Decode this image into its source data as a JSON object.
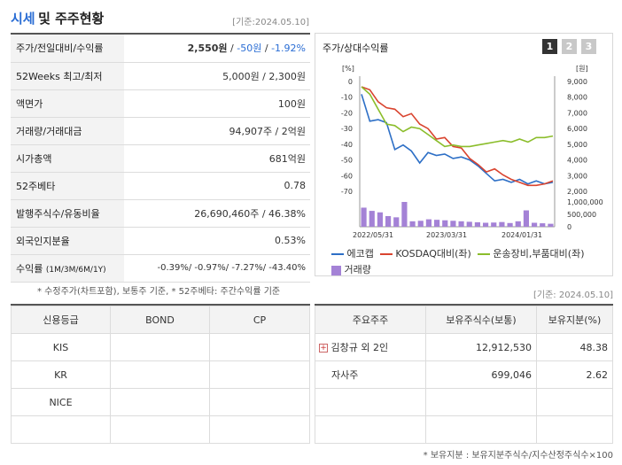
{
  "header": {
    "title_part1": "시세",
    "title_part2": "및 주주현황",
    "date": "[기준:2024.05.10]"
  },
  "market": {
    "rows": [
      {
        "label": "주가/전일대비/수익률"
      },
      {
        "label": "52Weeks 최고/최저",
        "value": "5,000원 / 2,300원"
      },
      {
        "label": "액면가",
        "value": "100원"
      },
      {
        "label": "거래량/거래대금",
        "value": "94,907주 / 2억원"
      },
      {
        "label": "시가총액",
        "value": "681억원"
      },
      {
        "label": "52주베타",
        "value": "0.78"
      },
      {
        "label": "발행주식수/유동비율",
        "value": "26,690,460주 / 46.38%"
      },
      {
        "label": "외국인지분율",
        "value": "0.53%"
      }
    ],
    "price": "2,550원",
    "change": "-50원",
    "change_pct": "-1.92%",
    "sep": "/",
    "returns_label": "수익률",
    "returns_sub": "(1M/3M/6M/1Y)",
    "returns_value": "-0.39%/ -0.97%/ -7.27%/ -43.40%",
    "note": "* 수정주가(차트포함), 보통주 기준, * 52주베타: 주간수익률 기준"
  },
  "chart_panel": {
    "title": "주가/상대수익률",
    "tabs": [
      "1",
      "2",
      "3"
    ],
    "date": "[기준: 2024.05.10]"
  },
  "chart_data": {
    "type": "line",
    "left_unit": "[%]",
    "right_unit": "[원]",
    "left_ticks": [
      "0",
      "-10",
      "-20",
      "-30",
      "-40",
      "-50",
      "-60",
      "-70"
    ],
    "right_ticks": [
      "9,000",
      "8,000",
      "7,000",
      "6,000",
      "5,000",
      "4,000",
      "3,000",
      "2,000"
    ],
    "volume_ticks": [
      "1,000,000",
      "500,000",
      "0"
    ],
    "x_labels": [
      "2022/05/31",
      "2023/03/31",
      "2024/01/31"
    ],
    "ylim_left": [
      -70,
      0
    ],
    "ylim_right": [
      2000,
      9000
    ],
    "series": [
      {
        "name": "에코캡",
        "color": "#2d6fc6",
        "values": [
          -5,
          -23,
          -22,
          -24,
          -42,
          -39,
          -43,
          -51,
          -44,
          -46,
          -45,
          -48,
          -47,
          -49,
          -53,
          -58,
          -63,
          -62,
          -64,
          -62,
          -65,
          -63,
          -65,
          -64
        ]
      },
      {
        "name": "KOSDAQ대비(좌)",
        "color": "#d9442f",
        "values": [
          0,
          -2,
          -10,
          -14,
          -15,
          -20,
          -18,
          -25,
          -28,
          -35,
          -34,
          -40,
          -41,
          -48,
          -52,
          -57,
          -55,
          -59,
          -62,
          -64,
          -66,
          -66,
          -65,
          -63
        ]
      },
      {
        "name": "운송장비,부품대비(좌)",
        "color": "#8bbd2b",
        "values": [
          0,
          -5,
          -15,
          -25,
          -26,
          -30,
          -27,
          -28,
          -32,
          -36,
          -40,
          -39,
          -40,
          -40,
          -39,
          -38,
          -37,
          -36,
          -37,
          -35,
          -37,
          -34,
          -34,
          -33
        ]
      }
    ],
    "volume": {
      "name": "거래량",
      "color": "#a482d6",
      "values": [
        770000,
        640000,
        580000,
        430000,
        380000,
        1000000,
        220000,
        240000,
        300000,
        280000,
        260000,
        240000,
        220000,
        200000,
        180000,
        160000,
        170000,
        190000,
        150000,
        220000,
        660000,
        160000,
        140000,
        120000
      ]
    }
  },
  "credit": {
    "headers": [
      "신용등급",
      "BOND",
      "CP"
    ],
    "rows": [
      "KIS",
      "KR",
      "NICE"
    ]
  },
  "shareholders": {
    "headers": [
      "주요주주",
      "보유주식수(보통)",
      "보유지분(%)"
    ],
    "rows": [
      {
        "name": "김창규 외 2인",
        "shares": "12,912,530",
        "pct": "48.38"
      },
      {
        "name": "자사주",
        "shares": "699,046",
        "pct": "2.62"
      }
    ],
    "expand_icon": "+",
    "note": "* 보유지분 : 보유지분주식수/지수산정주식수×100"
  }
}
